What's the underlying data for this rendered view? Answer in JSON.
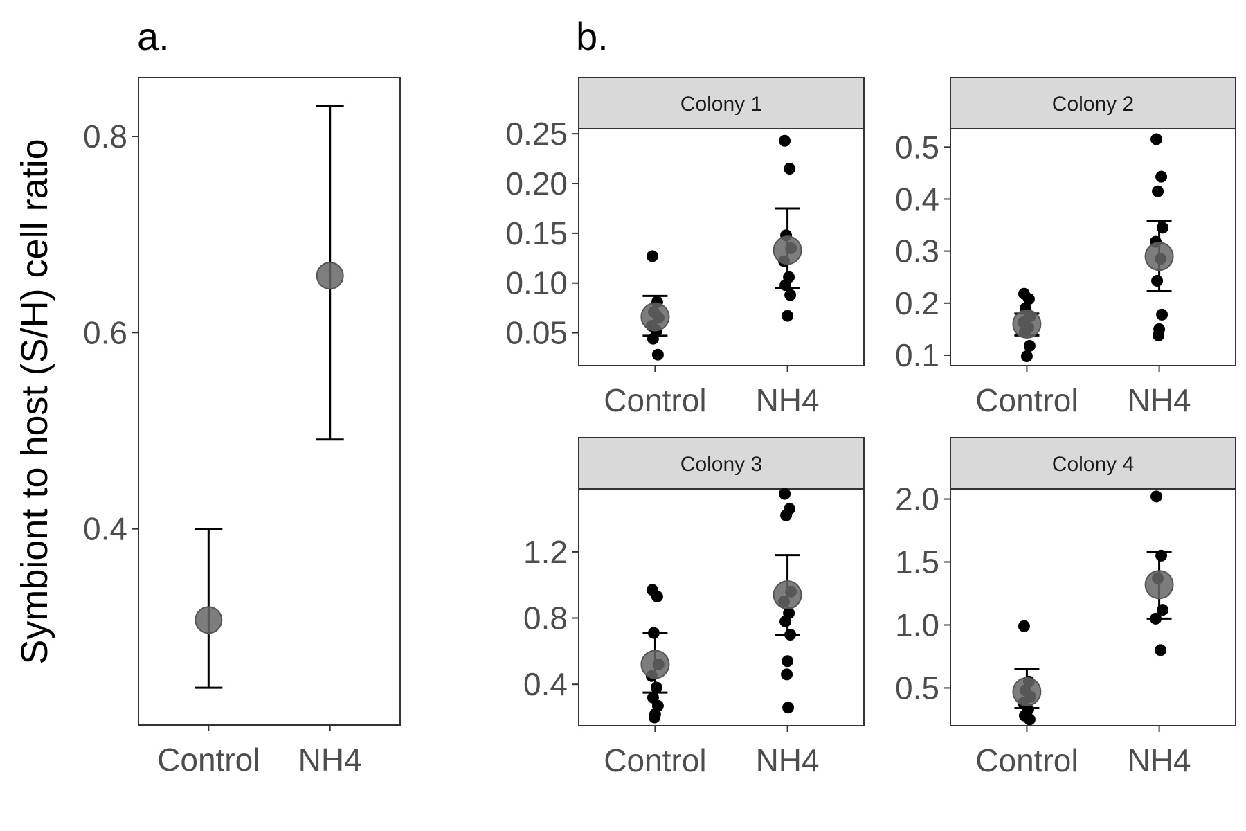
{
  "figure": {
    "ylabel": "Symbiont to host (S/H) cell ratio",
    "panel_a_tag": "a.",
    "panel_b_tag": "b.",
    "colors": {
      "mean_point": "#666666",
      "raw_point": "#000000",
      "strip_fill": "#d9d9d9",
      "frame": "#333333",
      "tick_text": "#4d4d4d"
    }
  },
  "chart_data": [
    {
      "id": "a",
      "type": "scatter",
      "title": "",
      "xlabel": "",
      "ylabel": "Symbiont to host (S/H) cell ratio",
      "categories": [
        "Control",
        "NH4"
      ],
      "ylim": [
        0.2,
        0.86
      ],
      "yticks": [
        0.4,
        0.6,
        0.8
      ],
      "ytick_labels": [
        "0.4",
        "0.6",
        "0.8"
      ],
      "means": [
        0.307,
        0.658
      ],
      "error_low": [
        0.238,
        0.491
      ],
      "error_high": [
        0.4,
        0.831
      ],
      "points": [
        [],
        []
      ],
      "grid": false
    },
    {
      "id": "b1",
      "type": "scatter",
      "title": "Colony 1",
      "categories": [
        "Control",
        "NH4"
      ],
      "ylim": [
        0.017,
        0.255
      ],
      "yticks": [
        0.05,
        0.1,
        0.15,
        0.2,
        0.25
      ],
      "ytick_labels": [
        "0.05",
        "0.10",
        "0.15",
        "0.20",
        "0.25"
      ],
      "means": [
        0.066,
        0.133
      ],
      "error_low": [
        0.047,
        0.095
      ],
      "error_high": [
        0.087,
        0.175
      ],
      "points": [
        [
          0.127,
          0.081,
          0.071,
          0.065,
          0.057,
          0.052,
          0.044,
          0.028
        ],
        [
          0.243,
          0.215,
          0.148,
          0.135,
          0.122,
          0.106,
          0.098,
          0.088,
          0.067
        ]
      ],
      "grid": false
    },
    {
      "id": "b2",
      "type": "scatter",
      "title": "Colony 2",
      "categories": [
        "Control",
        "NH4"
      ],
      "ylim": [
        0.08,
        0.535
      ],
      "yticks": [
        0.1,
        0.2,
        0.3,
        0.4,
        0.5
      ],
      "ytick_labels": [
        "0.1",
        "0.2",
        "0.3",
        "0.4",
        "0.5"
      ],
      "means": [
        0.16,
        0.29
      ],
      "error_low": [
        0.138,
        0.223
      ],
      "error_high": [
        0.18,
        0.358
      ],
      "points": [
        [
          0.218,
          0.208,
          0.19,
          0.175,
          0.163,
          0.153,
          0.145,
          0.118,
          0.098
        ],
        [
          0.515,
          0.443,
          0.415,
          0.345,
          0.318,
          0.285,
          0.243,
          0.178,
          0.15,
          0.138
        ]
      ],
      "grid": false
    },
    {
      "id": "b3",
      "type": "scatter",
      "title": "Colony 3",
      "categories": [
        "Control",
        "NH4"
      ],
      "ylim": [
        0.15,
        1.58
      ],
      "yticks": [
        0.4,
        0.8,
        1.2
      ],
      "ytick_labels": [
        "0.4",
        "0.8",
        "1.2"
      ],
      "means": [
        0.52,
        0.94
      ],
      "error_low": [
        0.35,
        0.7
      ],
      "error_high": [
        0.71,
        1.18
      ],
      "points": [
        [
          0.97,
          0.93,
          0.71,
          0.52,
          0.45,
          0.38,
          0.32,
          0.27,
          0.22,
          0.2
        ],
        [
          1.55,
          1.46,
          1.42,
          0.96,
          0.9,
          0.83,
          0.78,
          0.7,
          0.54,
          0.46,
          0.26
        ]
      ],
      "grid": false
    },
    {
      "id": "b4",
      "type": "scatter",
      "title": "Colony 4",
      "categories": [
        "Control",
        "NH4"
      ],
      "ylim": [
        0.2,
        2.08
      ],
      "yticks": [
        0.5,
        1.0,
        1.5,
        2.0
      ],
      "ytick_labels": [
        "0.5",
        "1.0",
        "1.5",
        "2.0"
      ],
      "means": [
        0.47,
        1.32
      ],
      "error_low": [
        0.34,
        1.05
      ],
      "error_high": [
        0.65,
        1.58
      ],
      "points": [
        [
          0.99,
          0.55,
          0.48,
          0.43,
          0.38,
          0.33,
          0.28,
          0.25
        ],
        [
          2.02,
          1.55,
          1.37,
          1.12,
          1.05,
          0.8
        ]
      ],
      "grid": false
    }
  ]
}
